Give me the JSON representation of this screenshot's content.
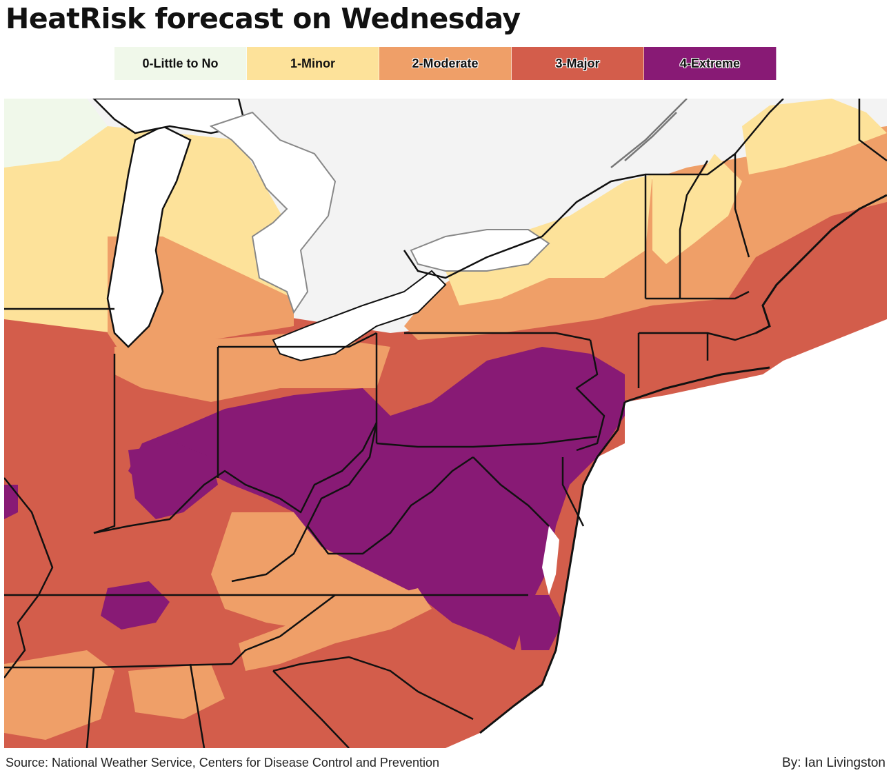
{
  "title": "HeatRisk forecast on Wednesday",
  "legend": [
    {
      "label": "0-Little to No",
      "color": "#f0f8ea",
      "style": "plain"
    },
    {
      "label": "1-Minor",
      "color": "#fde29a",
      "style": "plain"
    },
    {
      "label": "2-Moderate",
      "color": "#ef9f68",
      "style": "outlined"
    },
    {
      "label": "3-Major",
      "color": "#d35d4b",
      "style": "outlined"
    },
    {
      "label": "4-Extreme",
      "color": "#881a75",
      "style": "outlined"
    }
  ],
  "map": {
    "land_no_data_color": "#f3f3f3",
    "water_color": "#ffffff",
    "border_color": "#111111"
  },
  "footer": {
    "source": "Source: National Weather Service, Centers for Disease Control and Prevention",
    "credit": "By: Ian Livingston"
  }
}
